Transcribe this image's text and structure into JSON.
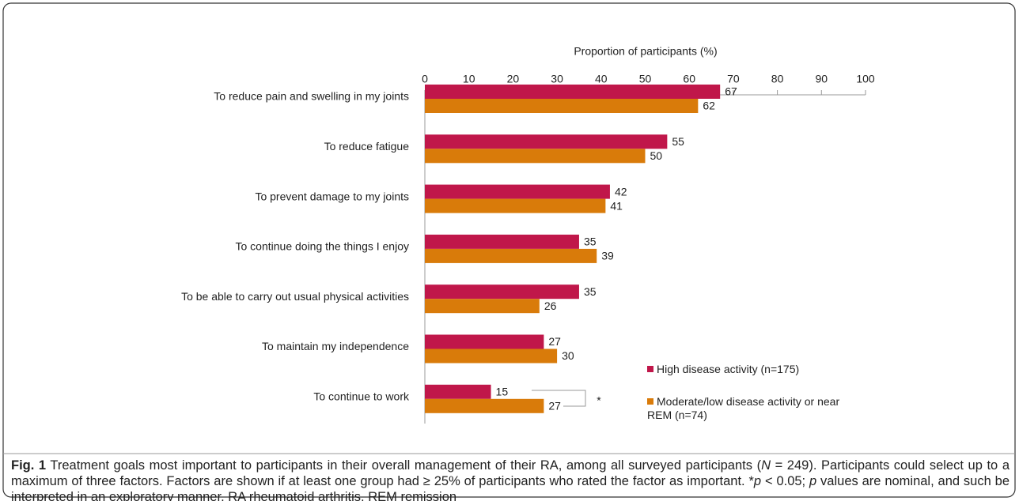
{
  "chart_data": {
    "type": "bar",
    "orientation": "horizontal",
    "xlabel": "Proportion of participants (%)",
    "categories": [
      "To reduce pain and swelling in my joints",
      "To reduce fatigue",
      "To prevent damage to my joints",
      "To continue doing the things I enjoy",
      "To be able to carry out usual physical activities",
      "To maintain my independence",
      "To continue to work"
    ],
    "series": [
      {
        "name": "High disease activity (n=175)",
        "color": "#c0174a",
        "values": [
          67,
          55,
          42,
          35,
          35,
          27,
          15
        ]
      },
      {
        "name": "Moderate/low disease activity or near REM (n=74)",
        "color": "#d97b0a",
        "values": [
          62,
          50,
          41,
          39,
          26,
          30,
          27
        ]
      }
    ],
    "xlim": [
      0,
      100
    ],
    "xticks": [
      0,
      10,
      20,
      30,
      40,
      50,
      60,
      70,
      80,
      90,
      100
    ],
    "annotation": "*"
  },
  "caption": {
    "label": "Fig. 1",
    "parts": [
      " Treatment goals most important to participants in their overall management of their RA, among all surveyed participants (",
      "N",
      " = 249). Participants could select up to a maximum of three factors. Factors are shown if at least one group had ≥ 25% of participants who rated the factor as important. *",
      "p",
      " < 0.05; ",
      "p",
      " values are nominal, and such be interpreted in an exploratory manner. RA rheumatoid arthritis, REM remission"
    ]
  }
}
